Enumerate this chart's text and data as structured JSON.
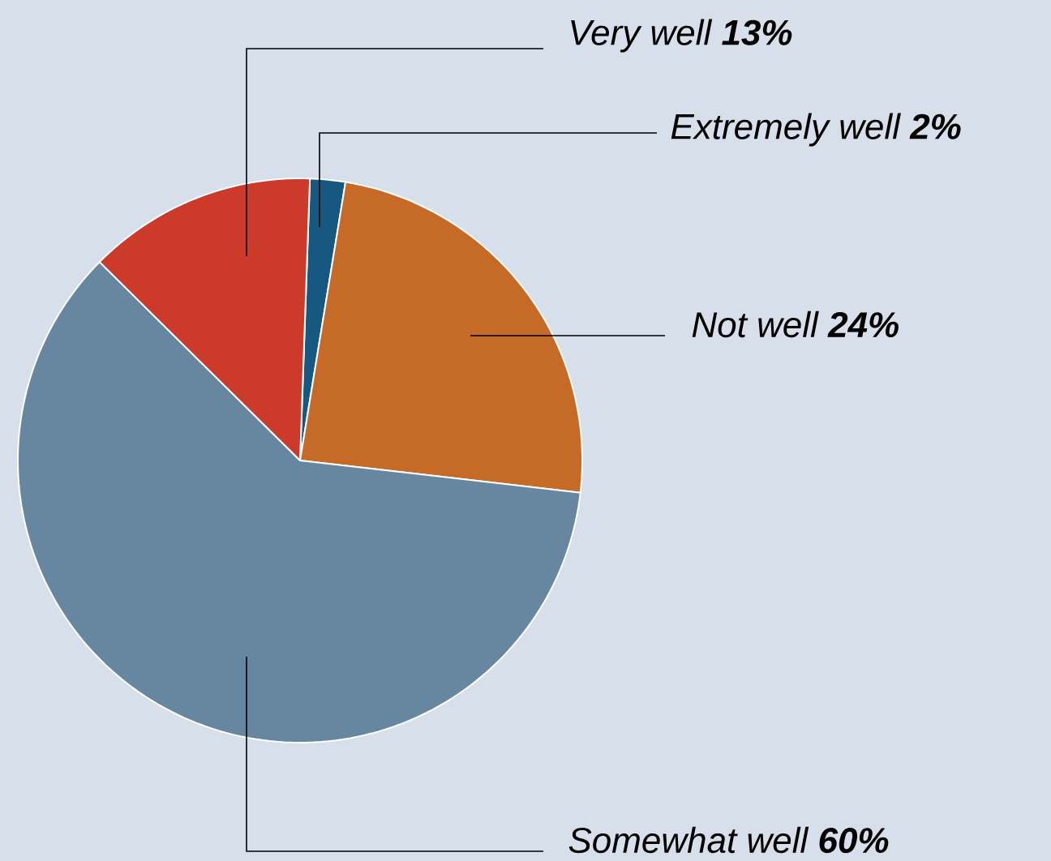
{
  "chart_data": {
    "type": "pie",
    "categories": [
      "Extremely well",
      "Not well",
      "Somewhat well",
      "Very well"
    ],
    "values": [
      2,
      24,
      60,
      13
    ],
    "colors": [
      "#16587f",
      "#c66a28",
      "#67869f",
      "#cc3a29"
    ],
    "value_labels": [
      "2%",
      "24%",
      "60%",
      "13%"
    ]
  }
}
